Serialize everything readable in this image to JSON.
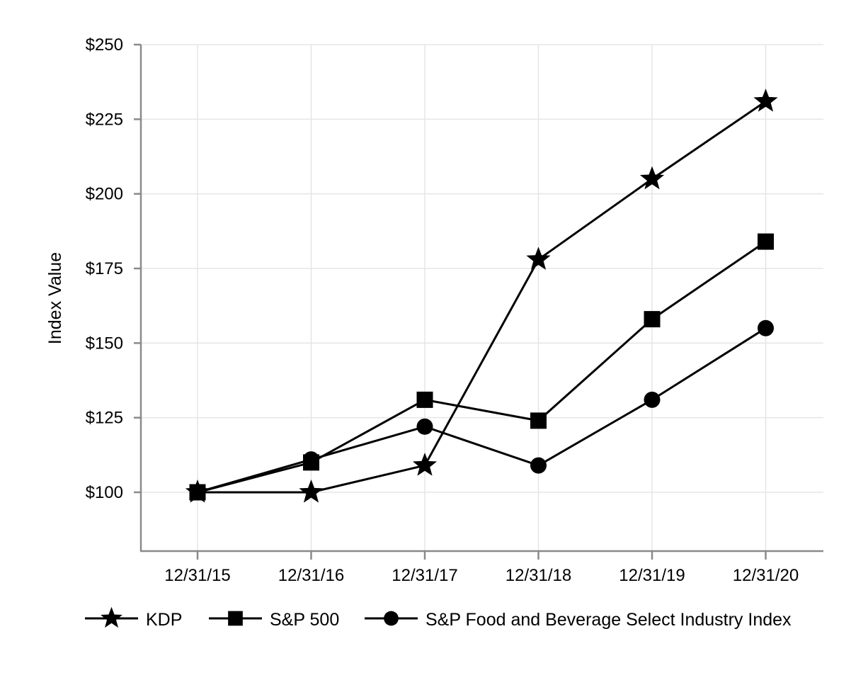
{
  "chart_data": {
    "type": "line",
    "title": "",
    "xlabel": "",
    "ylabel": "Index Value",
    "categories": [
      "12/31/15",
      "12/31/16",
      "12/31/17",
      "12/31/18",
      "12/31/19",
      "12/31/20"
    ],
    "series": [
      {
        "name": "KDP",
        "marker": "star",
        "values": [
          100,
          100,
          109,
          178,
          205,
          231
        ]
      },
      {
        "name": "S&P 500",
        "marker": "square",
        "values": [
          100,
          110,
          131,
          124,
          158,
          184
        ]
      },
      {
        "name": "S&P Food and Beverage Select Industry Index",
        "marker": "circle",
        "values": [
          100,
          111,
          122,
          109,
          131,
          155
        ]
      }
    ],
    "y_ticks": [
      100,
      125,
      150,
      175,
      200,
      225,
      250
    ],
    "y_tick_labels": [
      "$100",
      "$125",
      "$150",
      "$175",
      "$200",
      "$225",
      "$250"
    ],
    "ylim": [
      80,
      250
    ],
    "grid": true,
    "legend_position": "bottom",
    "colors": {
      "series": "#000000",
      "axis": "#8a8a8a",
      "grid": "#e5e5e5",
      "text": "#000000",
      "background": "#ffffff"
    }
  }
}
